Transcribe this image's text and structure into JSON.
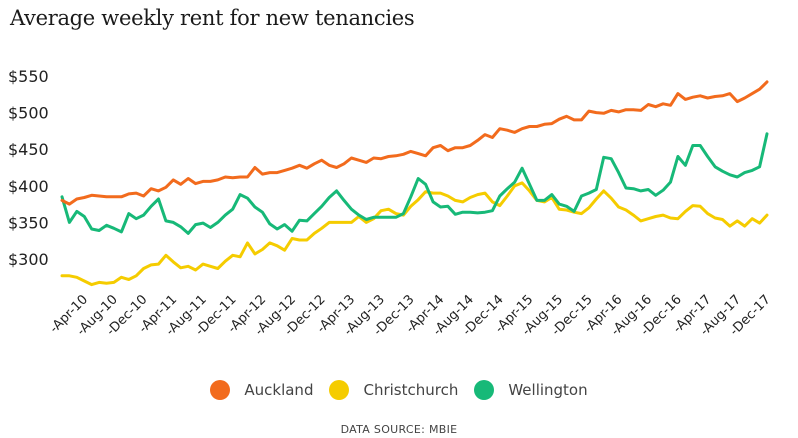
{
  "chart_data": {
    "type": "line",
    "title": "Average weekly rent for new tenancies",
    "xlabel": "",
    "ylabel": "",
    "ylim": [
      250,
      560
    ],
    "yticks": [
      300,
      350,
      400,
      450,
      500,
      550
    ],
    "ytick_labels": [
      "$300",
      "$350",
      "$400",
      "$450",
      "$500",
      "$550"
    ],
    "x_start": "Jan-10",
    "x_end": "Dec-17",
    "x_frequency": "monthly",
    "xtick_labels": [
      "-Apr-10",
      "-Aug-10",
      "-Dec-10",
      "-Apr-11",
      "-Aug-11",
      "-Dec-11",
      "-Apr-12",
      "-Aug-12",
      "-Dec-12",
      "-Apr-13",
      "-Aug-13",
      "-Dec-13",
      "-Apr-14",
      "-Aug-14",
      "-Dec-14",
      "-Apr-15",
      "-Aug-15",
      "-Dec-15",
      "-Apr-16",
      "-Aug-16",
      "-Dec-16",
      "-Apr-17",
      "-Aug-17",
      "-Dec-17"
    ],
    "xtick_indices": [
      3,
      7,
      11,
      15,
      19,
      23,
      27,
      31,
      35,
      39,
      43,
      47,
      51,
      55,
      59,
      63,
      67,
      71,
      75,
      79,
      83,
      87,
      91,
      95
    ],
    "grid": false,
    "legend_position": "bottom",
    "series": [
      {
        "name": "Auckland",
        "color": "#f26b1d",
        "values": [
          380,
          375,
          382,
          384,
          387,
          386,
          385,
          385,
          385,
          389,
          390,
          386,
          396,
          393,
          398,
          408,
          402,
          410,
          403,
          406,
          406,
          408,
          412,
          411,
          412,
          412,
          425,
          416,
          418,
          418,
          421,
          424,
          428,
          424,
          430,
          435,
          428,
          425,
          430,
          438,
          435,
          432,
          438,
          437,
          440,
          441,
          443,
          447,
          444,
          441,
          452,
          455,
          448,
          452,
          452,
          455,
          462,
          470,
          466,
          478,
          476,
          473,
          478,
          481,
          481,
          484,
          485,
          491,
          495,
          490,
          490,
          502,
          500,
          499,
          503,
          501,
          504,
          504,
          503,
          511,
          508,
          512,
          510,
          526,
          518,
          521,
          523,
          520,
          522,
          523,
          526,
          515,
          520,
          526,
          532,
          542
        ]
      },
      {
        "name": "Christchurch",
        "color": "#f5cc00",
        "values": [
          277,
          277,
          275,
          270,
          265,
          268,
          267,
          268,
          275,
          272,
          277,
          287,
          292,
          293,
          305,
          296,
          288,
          290,
          285,
          293,
          290,
          287,
          297,
          305,
          303,
          322,
          307,
          313,
          322,
          318,
          312,
          328,
          326,
          326,
          335,
          342,
          350,
          350,
          350,
          350,
          358,
          350,
          355,
          366,
          368,
          362,
          360,
          372,
          381,
          392,
          390,
          390,
          386,
          380,
          378,
          384,
          388,
          390,
          378,
          373,
          386,
          400,
          404,
          393,
          380,
          378,
          384,
          368,
          367,
          364,
          362,
          370,
          382,
          393,
          383,
          371,
          367,
          360,
          352,
          355,
          358,
          360,
          356,
          355,
          365,
          373,
          372,
          362,
          356,
          354,
          345,
          352,
          345,
          355,
          349,
          360
        ]
      },
      {
        "name": "Wellington",
        "color": "#17b978",
        "values": [
          385,
          350,
          365,
          358,
          341,
          339,
          346,
          342,
          337,
          362,
          355,
          360,
          372,
          382,
          352,
          350,
          344,
          335,
          347,
          349,
          343,
          350,
          360,
          368,
          388,
          383,
          371,
          364,
          348,
          341,
          347,
          338,
          353,
          352,
          362,
          372,
          384,
          393,
          380,
          368,
          360,
          354,
          357,
          357,
          357,
          357,
          362,
          385,
          410,
          402,
          378,
          371,
          372,
          361,
          364,
          364,
          363,
          364,
          366,
          386,
          396,
          405,
          424,
          402,
          380,
          380,
          388,
          375,
          372,
          365,
          386,
          390,
          395,
          439,
          437,
          418,
          397,
          396,
          393,
          395,
          387,
          394,
          405,
          440,
          428,
          455,
          455,
          440,
          426,
          420,
          415,
          412,
          418,
          421,
          426,
          471
        ]
      }
    ]
  },
  "legend": [
    {
      "label": "Auckland",
      "color": "#f26b1d"
    },
    {
      "label": "Christchurch",
      "color": "#f5cc00"
    },
    {
      "label": "Wellington",
      "color": "#17b978"
    }
  ],
  "source": "DATA SOURCE: MBIE"
}
